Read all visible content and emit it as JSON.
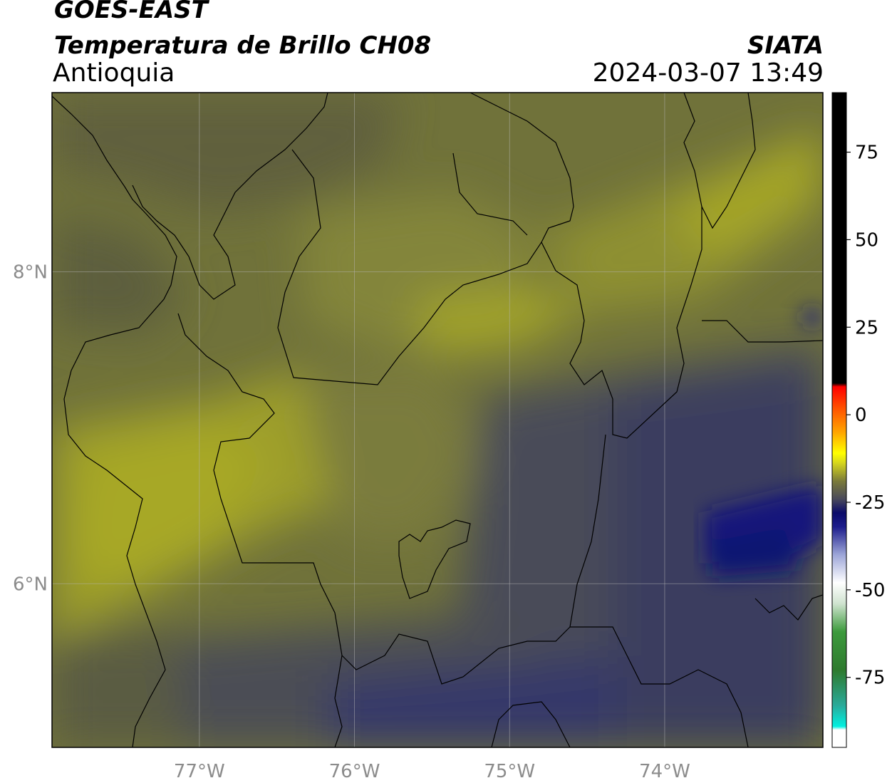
{
  "header": {
    "source": "GOES-EAST",
    "product": "Temperatura de Brillo CH08",
    "region": "Antioquia",
    "organization": "SIATA",
    "timestamp": "2024-03-07 13:49"
  },
  "map": {
    "lon_range": [
      -77.95,
      -72.98
    ],
    "lat_range": [
      4.95,
      9.15
    ],
    "lon_ticks": [
      {
        "value": -77,
        "label": "77°W"
      },
      {
        "value": -76,
        "label": "76°W"
      },
      {
        "value": -75,
        "label": "75°W"
      },
      {
        "value": -74,
        "label": "74°W"
      }
    ],
    "lat_ticks": [
      {
        "value": 8,
        "label": "8°N"
      },
      {
        "value": 6,
        "label": "6°N"
      }
    ],
    "gridlines": true
  },
  "colorbar": {
    "range": [
      -95,
      92
    ],
    "ticks": [
      {
        "value": 75,
        "label": "75"
      },
      {
        "value": 50,
        "label": "50"
      },
      {
        "value": 25,
        "label": "25"
      },
      {
        "value": 0,
        "label": "0"
      },
      {
        "value": -25,
        "label": "-25"
      },
      {
        "value": -50,
        "label": "-50"
      },
      {
        "value": -75,
        "label": "-75"
      }
    ],
    "colors": {
      "black": "#000000",
      "red": "#ff0000",
      "orange": "#ff8c00",
      "yellow": "#ffff00",
      "olive": "#b6b628",
      "gray": "#5a5a5a",
      "navy": "#0b0b7a",
      "light_blue": "#9da6d8",
      "white": "#ffffff",
      "green": "#2e8b2e",
      "cyan": "#00f0e0"
    },
    "stops": [
      {
        "value": -95,
        "color": "#ffffff"
      },
      {
        "value": -90,
        "color": "#ffffff"
      },
      {
        "value": -89,
        "color": "#00f0e0"
      },
      {
        "value": -83,
        "color": "#2aaa9a"
      },
      {
        "value": -73,
        "color": "#2e7a2e"
      },
      {
        "value": -62,
        "color": "#3c9a3c"
      },
      {
        "value": -54,
        "color": "#cfe3cf"
      },
      {
        "value": -48,
        "color": "#ffffff"
      },
      {
        "value": -40,
        "color": "#9da6d8"
      },
      {
        "value": -32,
        "color": "#1c1c8c"
      },
      {
        "value": -28,
        "color": "#0b0b6a"
      },
      {
        "value": -24,
        "color": "#4a4a5a"
      },
      {
        "value": -19,
        "color": "#7a7a3a"
      },
      {
        "value": -14,
        "color": "#d2d21e"
      },
      {
        "value": -11,
        "color": "#ffff00"
      },
      {
        "value": -5,
        "color": "#ffa500"
      },
      {
        "value": 2,
        "color": "#ff5000"
      },
      {
        "value": 8,
        "color": "#ff0000"
      },
      {
        "value": 9,
        "color": "#000000"
      },
      {
        "value": 92,
        "color": "#000000"
      }
    ]
  }
}
